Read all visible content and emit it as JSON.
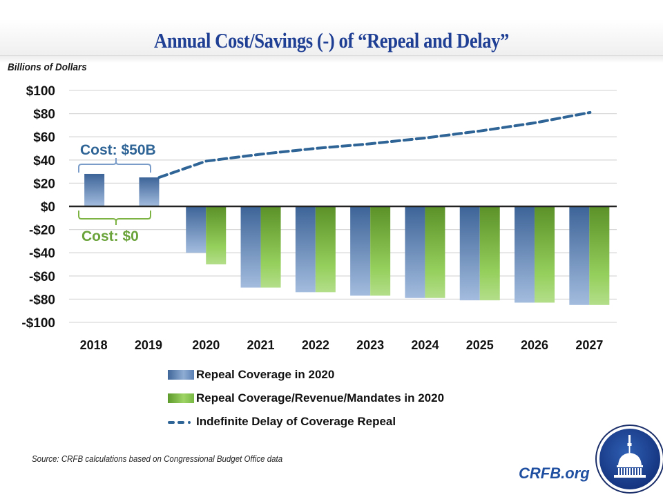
{
  "header": {
    "title": "Annual Cost/Savings (-) of “Repeal and Delay”"
  },
  "chart_data": {
    "type": "bar",
    "title": "Annual Cost/Savings (-) of “Repeal and Delay”",
    "ylabel": "Billions of Dollars",
    "xlabel": "",
    "ylim": [
      -100,
      100
    ],
    "yticks": [
      100,
      80,
      60,
      40,
      20,
      0,
      -20,
      -40,
      -60,
      -80,
      -100
    ],
    "ytick_labels": [
      "$100",
      "$80",
      "$60",
      "$40",
      "$20",
      "$0",
      "-$20",
      "-$40",
      "-$60",
      "-$80",
      "-$100"
    ],
    "grid": true,
    "categories": [
      "2018",
      "2019",
      "2020",
      "2021",
      "2022",
      "2023",
      "2024",
      "2025",
      "2026",
      "2027"
    ],
    "series": [
      {
        "name": "Repeal Coverage in 2020",
        "type": "bar",
        "color": "#4a72a8",
        "values": [
          28,
          25,
          -40,
          -70,
          -74,
          -77,
          -79,
          -81,
          -83,
          -85
        ]
      },
      {
        "name": "Repeal Coverage/Revenue/Mandates in 2020",
        "type": "bar",
        "color": "#6fb23a",
        "values": [
          null,
          null,
          -50,
          -70,
          -74,
          -77,
          -79,
          -81,
          -83,
          -85
        ]
      },
      {
        "name": "Indefinite Delay of Coverage Repeal",
        "type": "line",
        "style": "dashed",
        "color": "#2e6496",
        "values": [
          null,
          25,
          39,
          45,
          50,
          54,
          59,
          65,
          72,
          81
        ]
      }
    ],
    "annotations": [
      {
        "text": "Cost: $50B",
        "color": "#2e6496",
        "spans": [
          "2018",
          "2019"
        ],
        "position": "above"
      },
      {
        "text": "Cost: $0",
        "color": "#6aa33a",
        "spans": [
          "2018",
          "2019"
        ],
        "position": "below"
      }
    ],
    "legend_position": "bottom"
  },
  "legend": {
    "items": [
      {
        "label": "Repeal Coverage in 2020"
      },
      {
        "label": "Repeal Coverage/Revenue/Mandates in 2020"
      },
      {
        "label": "Indefinite Delay of Coverage Repeal"
      }
    ]
  },
  "footer": {
    "source": "Source: CRFB calculations based on Congressional Budget Office data",
    "site": "CRFB.org",
    "logo_icon": "capitol-dome-logo"
  }
}
